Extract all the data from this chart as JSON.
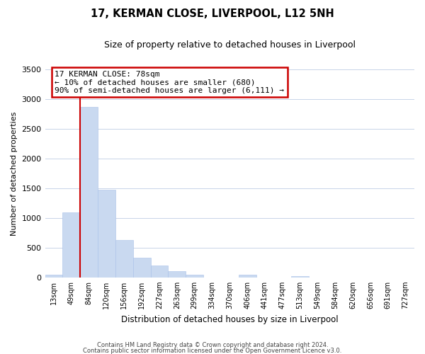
{
  "title": "17, KERMAN CLOSE, LIVERPOOL, L12 5NH",
  "subtitle": "Size of property relative to detached houses in Liverpool",
  "xlabel": "Distribution of detached houses by size in Liverpool",
  "ylabel": "Number of detached properties",
  "bar_labels": [
    "13sqm",
    "49sqm",
    "84sqm",
    "120sqm",
    "156sqm",
    "192sqm",
    "227sqm",
    "263sqm",
    "299sqm",
    "334sqm",
    "370sqm",
    "406sqm",
    "441sqm",
    "477sqm",
    "513sqm",
    "549sqm",
    "584sqm",
    "620sqm",
    "656sqm",
    "691sqm",
    "727sqm"
  ],
  "bar_values": [
    40,
    1090,
    2870,
    1470,
    630,
    330,
    195,
    100,
    50,
    0,
    0,
    40,
    0,
    0,
    20,
    0,
    0,
    0,
    0,
    0,
    0
  ],
  "bar_color": "#c9d9f0",
  "bar_edge_color": "#a8c0e8",
  "red_line_after_bin": 1,
  "annotation_title": "17 KERMAN CLOSE: 78sqm",
  "annotation_line1": "← 10% of detached houses are smaller (680)",
  "annotation_line2": "90% of semi-detached houses are larger (6,111) →",
  "annotation_box_color": "#ffffff",
  "annotation_box_edge": "#cc0000",
  "ylim": [
    0,
    3500
  ],
  "yticks": [
    0,
    500,
    1000,
    1500,
    2000,
    2500,
    3000,
    3500
  ],
  "grid_color": "#c8d4e8",
  "footer1": "Contains HM Land Registry data © Crown copyright and database right 2024.",
  "footer2": "Contains public sector information licensed under the Open Government Licence v3.0."
}
